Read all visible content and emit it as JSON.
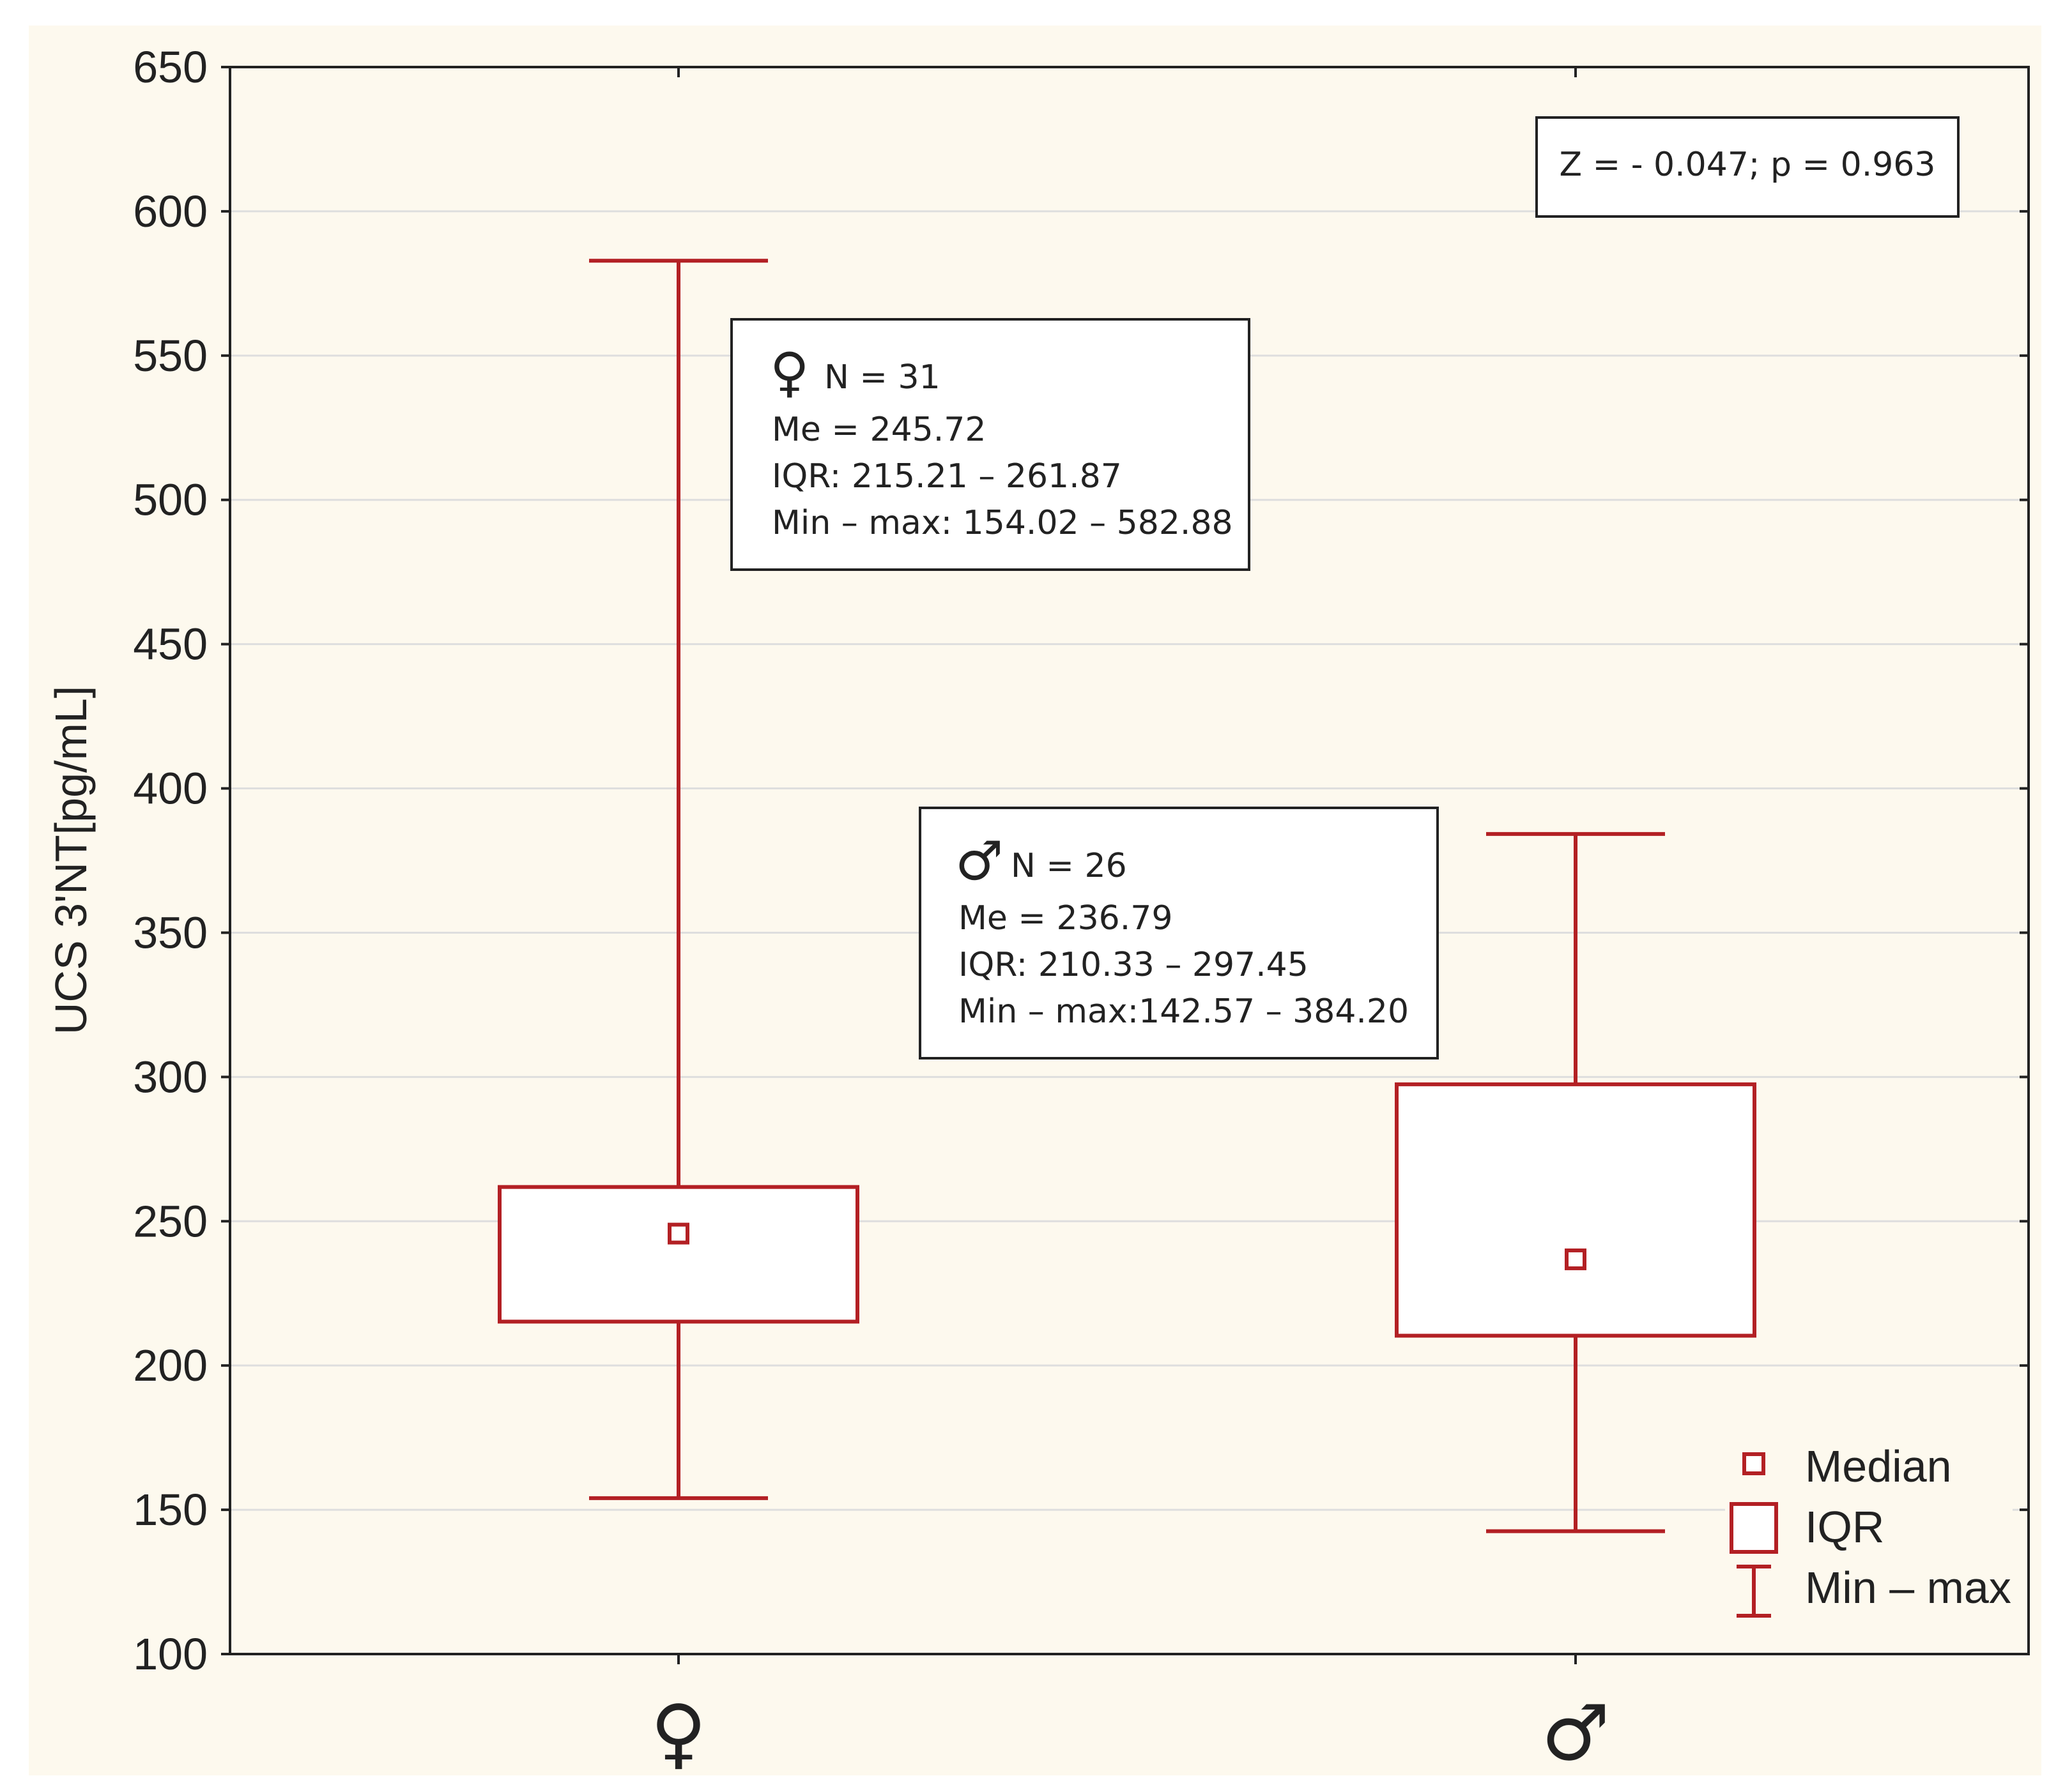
{
  "chart_data": {
    "type": "box",
    "title": "",
    "ylabel": "UCS 3'NT[pg/mL]",
    "xlabel": "",
    "ylim": [
      100,
      650
    ],
    "yticks": [
      100,
      150,
      200,
      250,
      300,
      350,
      400,
      450,
      500,
      550,
      600,
      650
    ],
    "grid": true,
    "categories": [
      "♀",
      "♂"
    ],
    "series": [
      {
        "category": "♀",
        "median": 245.72,
        "q1": 215.21,
        "q3": 261.87,
        "min": 154.02,
        "max": 582.88
      },
      {
        "category": "♂",
        "median": 236.79,
        "q1": 210.33,
        "q3": 297.45,
        "min": 142.57,
        "max": 384.2
      }
    ],
    "annotations": {
      "test": "Z = - 0.047; p = 0.963",
      "female": {
        "symbol": "♀",
        "n": "N = 31",
        "me": "Me = 245.72",
        "iqr": "IQR: 215.21 – 261.87",
        "range": "Min – max: 154.02 – 582.88"
      },
      "male": {
        "symbol": "♂",
        "n": "N = 26",
        "me": "Me = 236.79",
        "iqr": "IQR: 210.33 – 297.45",
        "range": "Min – max:142.57 – 384.20"
      }
    },
    "legend": {
      "position": "bottom-right",
      "items": [
        "Median",
        "IQR",
        "Min – max"
      ]
    },
    "colors": {
      "boxes": "#b32024",
      "grid": "#dedede",
      "axes": "#222222"
    }
  }
}
